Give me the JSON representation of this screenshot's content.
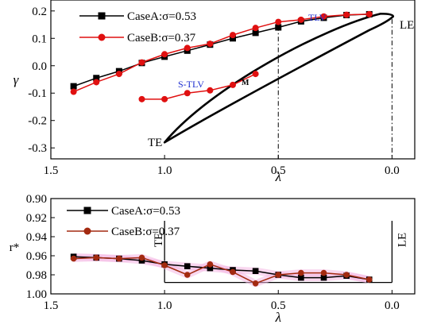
{
  "chart_data": [
    {
      "type": "line",
      "xlabel": "λ",
      "ylabel": "γ",
      "xlim": [
        1.5,
        -0.1
      ],
      "ylim": [
        -0.34,
        0.24
      ],
      "xticks": [
        "1.5",
        "1.0",
        "0.5",
        "0.0"
      ],
      "yticks": [
        "0.2",
        "0.1",
        "0.0",
        "-0.1",
        "-0.2",
        "-0.3"
      ],
      "legend_position": "top-left",
      "series": [
        {
          "name": "CaseA:σ=0.53",
          "color": "#000000",
          "marker": "square",
          "points": [
            [
              1.4,
              -0.075
            ],
            [
              1.3,
              -0.045
            ],
            [
              1.2,
              -0.02
            ],
            [
              1.1,
              0.01
            ],
            [
              1.0,
              0.033
            ],
            [
              0.9,
              0.055
            ],
            [
              0.8,
              0.077
            ],
            [
              0.7,
              0.1
            ],
            [
              0.6,
              0.12
            ],
            [
              0.5,
              0.14
            ],
            [
              0.4,
              0.162
            ],
            [
              0.3,
              0.175
            ],
            [
              0.2,
              0.185
            ],
            [
              0.1,
              0.188
            ]
          ]
        },
        {
          "name": "CaseB:σ=0.37",
          "color": "#e01010",
          "marker": "circle",
          "points": [
            [
              1.4,
              -0.095
            ],
            [
              1.3,
              -0.06
            ],
            [
              1.2,
              -0.03
            ],
            [
              1.1,
              0.012
            ],
            [
              1.0,
              0.042
            ],
            [
              0.9,
              0.065
            ],
            [
              0.8,
              0.08
            ],
            [
              0.7,
              0.112
            ],
            [
              0.6,
              0.138
            ],
            [
              0.5,
              0.16
            ],
            [
              0.4,
              0.168
            ],
            [
              0.3,
              0.18
            ],
            [
              0.2,
              0.186
            ],
            [
              0.1,
              0.188
            ]
          ]
        },
        {
          "name": "S-TLV",
          "color": "#e01010",
          "marker": "circle",
          "points": [
            [
              1.1,
              -0.122
            ],
            [
              1.0,
              -0.122
            ],
            [
              0.9,
              -0.1
            ],
            [
              0.8,
              -0.09
            ],
            [
              0.7,
              -0.07
            ],
            [
              0.6,
              -0.03
            ]
          ]
        }
      ],
      "annotations": {
        "tlv": "TLV",
        "stlv": "S-TLV",
        "m": "M",
        "te": "TE",
        "le": "LE"
      },
      "reference_lines_x": [
        0.5,
        0.0
      ]
    },
    {
      "type": "line",
      "xlabel": "λ",
      "ylabel": "r*",
      "xlim": [
        1.5,
        -0.1
      ],
      "ylim": [
        1.0,
        0.9
      ],
      "y_inverted": true,
      "xticks": [
        "1.5",
        "1.0",
        "0.5",
        "0.0"
      ],
      "yticks": [
        "0.90",
        "0.92",
        "0.94",
        "0.96",
        "0.98",
        "1.00"
      ],
      "legend_position": "top-left",
      "series": [
        {
          "name": "CaseA:σ=0.53",
          "color": "#000000",
          "marker": "square",
          "points": [
            [
              1.4,
              0.961
            ],
            [
              1.3,
              0.962
            ],
            [
              1.2,
              0.963
            ],
            [
              1.1,
              0.965
            ],
            [
              1.0,
              0.969
            ],
            [
              0.9,
              0.971
            ],
            [
              0.8,
              0.973
            ],
            [
              0.7,
              0.975
            ],
            [
              0.6,
              0.976
            ],
            [
              0.5,
              0.98
            ],
            [
              0.4,
              0.983
            ],
            [
              0.3,
              0.983
            ],
            [
              0.2,
              0.981
            ],
            [
              0.1,
              0.985
            ]
          ]
        },
        {
          "name": "CaseB:σ=0.37",
          "color": "#a32a10",
          "marker": "circle",
          "points": [
            [
              1.4,
              0.963
            ],
            [
              1.3,
              0.962
            ],
            [
              1.2,
              0.963
            ],
            [
              1.1,
              0.962
            ],
            [
              1.0,
              0.97
            ],
            [
              0.9,
              0.98
            ],
            [
              0.8,
              0.969
            ],
            [
              0.7,
              0.977
            ],
            [
              0.6,
              0.989
            ],
            [
              0.5,
              0.98
            ],
            [
              0.4,
              0.978
            ],
            [
              0.3,
              0.978
            ],
            [
              0.2,
              0.98
            ],
            [
              0.1,
              0.985
            ]
          ]
        }
      ],
      "annotations": {
        "te": "TE",
        "le": "LE"
      },
      "reference_lines_x": [
        1.0,
        0.0
      ]
    }
  ]
}
